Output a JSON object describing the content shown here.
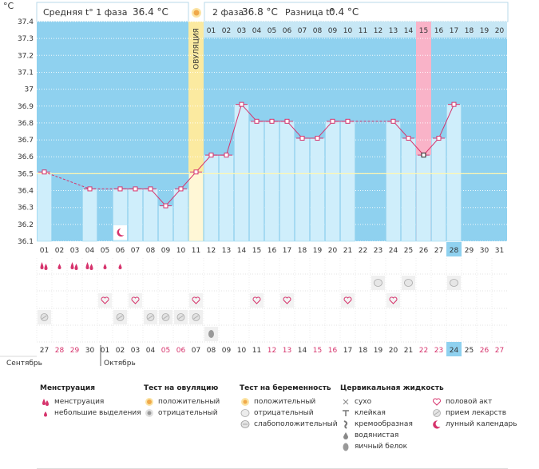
{
  "header": {
    "phase1_label": "Средняя t° 1 фаза",
    "phase1_value": "36.4 °C",
    "phase2_label": "2 фаза",
    "phase2_value": "36.8 °C",
    "diff_label": "Разница t°",
    "diff_value": "0.4 °C",
    "unit": "°C",
    "ovulation_label": "ОВУЛЯЦИЯ"
  },
  "chart_data": {
    "type": "line",
    "y_ticks": [
      "37.4",
      "37.3",
      "37.2",
      "37.1",
      "37",
      "36.9",
      "36.8",
      "36.7",
      "36.6",
      "36.5",
      "36.4",
      "36.3",
      "36.2",
      "36.1"
    ],
    "ylim": [
      36.1,
      37.4
    ],
    "coverline": 36.5,
    "x_days": [
      "01",
      "02",
      "03",
      "04",
      "05",
      "06",
      "07",
      "08",
      "09",
      "10",
      "11",
      "12",
      "13",
      "14",
      "15",
      "16",
      "17",
      "18",
      "19",
      "20",
      "21",
      "22",
      "23",
      "24",
      "25",
      "26",
      "27",
      "28",
      "29",
      "30",
      "31"
    ],
    "dates": [
      "27",
      "28",
      "29",
      "30",
      "01",
      "02",
      "03",
      "04",
      "05",
      "06",
      "07",
      "08",
      "09",
      "10",
      "11",
      "12",
      "13",
      "14",
      "15",
      "16",
      "17",
      "18",
      "19",
      "20",
      "21",
      "22",
      "23",
      "24",
      "25",
      "26",
      "27"
    ],
    "date_red": [
      false,
      true,
      true,
      false,
      false,
      false,
      false,
      false,
      true,
      true,
      false,
      false,
      false,
      false,
      false,
      true,
      true,
      false,
      true,
      true,
      false,
      false,
      false,
      false,
      false,
      true,
      true,
      false,
      false,
      true,
      true
    ],
    "month1": "Сентябрь",
    "month2": "Октябрь",
    "phase2_days": [
      "01",
      "02",
      "03",
      "04",
      "05",
      "06",
      "07",
      "08",
      "09",
      "10",
      "11",
      "12",
      "13",
      "14",
      "15",
      "16",
      "17",
      "18",
      "19",
      "20"
    ],
    "highlight_phase2_day": "15",
    "today_index": 27,
    "ovulation_index": 10,
    "series": [
      {
        "name": "",
        "values": [
          36.51,
          null,
          null,
          36.41,
          null,
          36.41,
          36.41,
          36.41,
          36.31,
          36.41,
          36.51,
          36.61,
          36.61,
          36.91,
          36.81,
          36.81,
          36.81,
          36.71,
          36.71,
          36.81,
          36.81,
          null,
          null,
          36.81,
          36.71,
          36.61,
          36.71,
          36.91,
          null,
          null,
          null
        ]
      }
    ],
    "dashed_gaps": [
      [
        0,
        3
      ],
      [
        20,
        23
      ]
    ],
    "special_point_index": 25
  },
  "rows": {
    "menstruation": [
      2,
      1,
      2,
      2,
      1,
      1,
      0,
      0,
      0,
      0,
      0,
      0,
      0,
      0,
      0,
      0,
      0,
      0,
      0,
      0,
      0,
      0,
      0,
      0,
      0,
      0,
      0,
      0,
      0,
      0,
      0
    ],
    "pregnancy_weak": [
      false,
      false,
      false,
      false,
      false,
      false,
      false,
      false,
      false,
      false,
      false,
      false,
      false,
      false,
      false,
      false,
      false,
      false,
      false,
      false,
      false,
      false,
      true,
      false,
      true,
      false,
      false,
      true,
      false,
      false,
      false
    ],
    "intercourse": [
      false,
      false,
      false,
      false,
      true,
      false,
      true,
      false,
      false,
      false,
      true,
      false,
      false,
      false,
      true,
      false,
      true,
      false,
      false,
      false,
      true,
      false,
      false,
      true,
      false,
      false,
      false,
      false,
      false,
      false,
      false
    ],
    "medication": [
      true,
      false,
      false,
      false,
      false,
      true,
      false,
      true,
      true,
      true,
      true,
      false,
      false,
      false,
      false,
      false,
      false,
      false,
      false,
      false,
      false,
      false,
      false,
      false,
      false,
      false,
      false,
      false,
      false,
      false,
      false
    ],
    "mucus_egg": [
      false,
      false,
      false,
      false,
      false,
      false,
      false,
      false,
      false,
      false,
      false,
      true,
      false,
      false,
      false,
      false,
      false,
      false,
      false,
      false,
      false,
      false,
      false,
      false,
      false,
      false,
      false,
      false,
      false,
      false,
      false
    ],
    "lunar_index": 5
  },
  "legend": {
    "menstruation": {
      "title": "Менструация",
      "items": [
        "менструация",
        "небольшие выделения"
      ]
    },
    "ovulation_test": {
      "title": "Тест на овуляцию",
      "items": [
        "положительный",
        "отрицательный"
      ]
    },
    "pregnancy_test": {
      "title": "Тест на беременность",
      "items": [
        "положительный",
        "отрицательный",
        "слабоположительный"
      ]
    },
    "cervical": {
      "title": "Цервикальная жидкость",
      "items": [
        "сухо",
        "клейкая",
        "кремообразная",
        "водянистая",
        "яичный белок"
      ]
    },
    "other": {
      "items": [
        "половой акт",
        "прием лекарств",
        "лунный календарь"
      ]
    }
  },
  "colors": {
    "sky": "#8fd1ef",
    "bar": "#cfeefb",
    "bar_edge": "#9fd8f0",
    "line": "#d6336c",
    "ovulation": "#fbeaa0",
    "peak": "#f9b3c8",
    "today": "#8fd1ef",
    "grid": "#c8e9f6"
  }
}
